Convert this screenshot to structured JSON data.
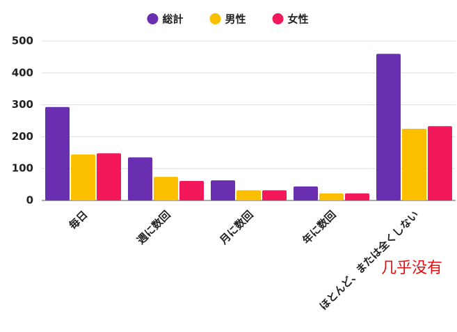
{
  "chart_data": {
    "type": "bar",
    "categories": [
      "毎日",
      "週に数回",
      "月に数回",
      "年に数回",
      "ほとんど、または全くしない"
    ],
    "series": [
      {
        "name": "総計",
        "color": "#6a2fb0",
        "values": [
          293,
          135,
          63,
          44,
          460
        ]
      },
      {
        "name": "男性",
        "color": "#fbbf00",
        "values": [
          144,
          74,
          32,
          22,
          225
        ]
      },
      {
        "name": "女性",
        "color": "#f2185a",
        "values": [
          148,
          61,
          32,
          22,
          233
        ]
      }
    ],
    "ylim": [
      0,
      500
    ],
    "yticks": [
      0,
      100,
      200,
      300,
      400,
      500
    ],
    "grid": true,
    "legend": "top",
    "annotation": "几乎没有"
  }
}
